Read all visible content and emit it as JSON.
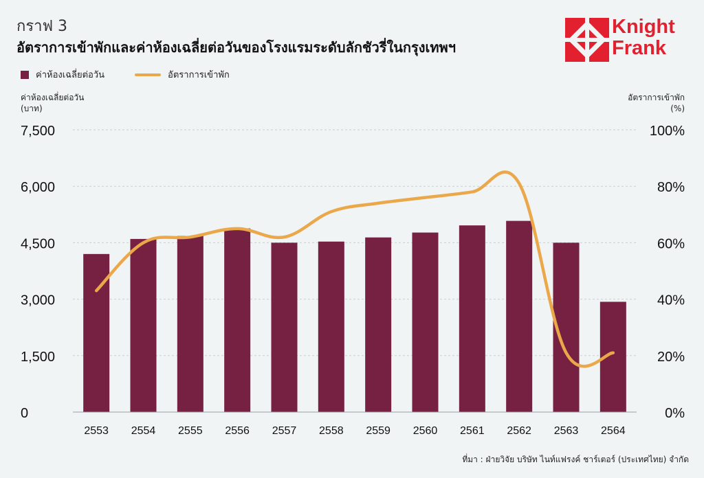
{
  "figure_label": "กราฟ 3",
  "title": "อัตราการเข้าพักและค่าห้องเฉลี่ยต่อวันของโรงแรมระดับลักชัวรี่ในกรุงเทพฯ",
  "logo": {
    "line1": "Knight",
    "line2": "Frank",
    "color": "#e3202f"
  },
  "source": "ที่มา : ฝ่ายวิจัย บริษัท ไนท์แฟรงค์ ชาร์เตอร์ (ประเทศไทย) จำกัด",
  "chart_data": {
    "type": "bar+line",
    "categories": [
      "2553",
      "2554",
      "2555",
      "2556",
      "2557",
      "2558",
      "2559",
      "2560",
      "2561",
      "2562",
      "2563",
      "2564"
    ],
    "series": [
      {
        "name": "ค่าห้องเฉลี่ยต่อวัน",
        "type": "bar",
        "axis": "left",
        "color": "#772142",
        "values": [
          4200,
          4600,
          4680,
          4880,
          4500,
          4530,
          4640,
          4770,
          4960,
          5080,
          4500,
          2930
        ]
      },
      {
        "name": "อัตราการเข้าพัก",
        "type": "line",
        "axis": "right",
        "color": "#eaa84b",
        "values": [
          43,
          60,
          62,
          65,
          62,
          71,
          74,
          76,
          78,
          81,
          21,
          21
        ]
      }
    ],
    "left_axis": {
      "label_line1": "ค่าห้องเฉลี่ยต่อวัน",
      "label_line2": "(บาท)",
      "range": [
        0,
        7500
      ],
      "ticks": [
        0,
        1500,
        3000,
        4500,
        6000,
        7500
      ],
      "tick_labels": [
        "0",
        "1,500",
        "3,000",
        "4,500",
        "6,000",
        "7,500"
      ]
    },
    "right_axis": {
      "label_line1": "อัตราการเข้าพัก",
      "label_line2": "(%)",
      "range": [
        0,
        100
      ],
      "ticks": [
        0,
        20,
        40,
        60,
        80,
        100
      ],
      "tick_labels": [
        "0%",
        "20%",
        "40%",
        "60%",
        "80%",
        "100%"
      ]
    },
    "grid": true,
    "legend_position": "top-left"
  }
}
